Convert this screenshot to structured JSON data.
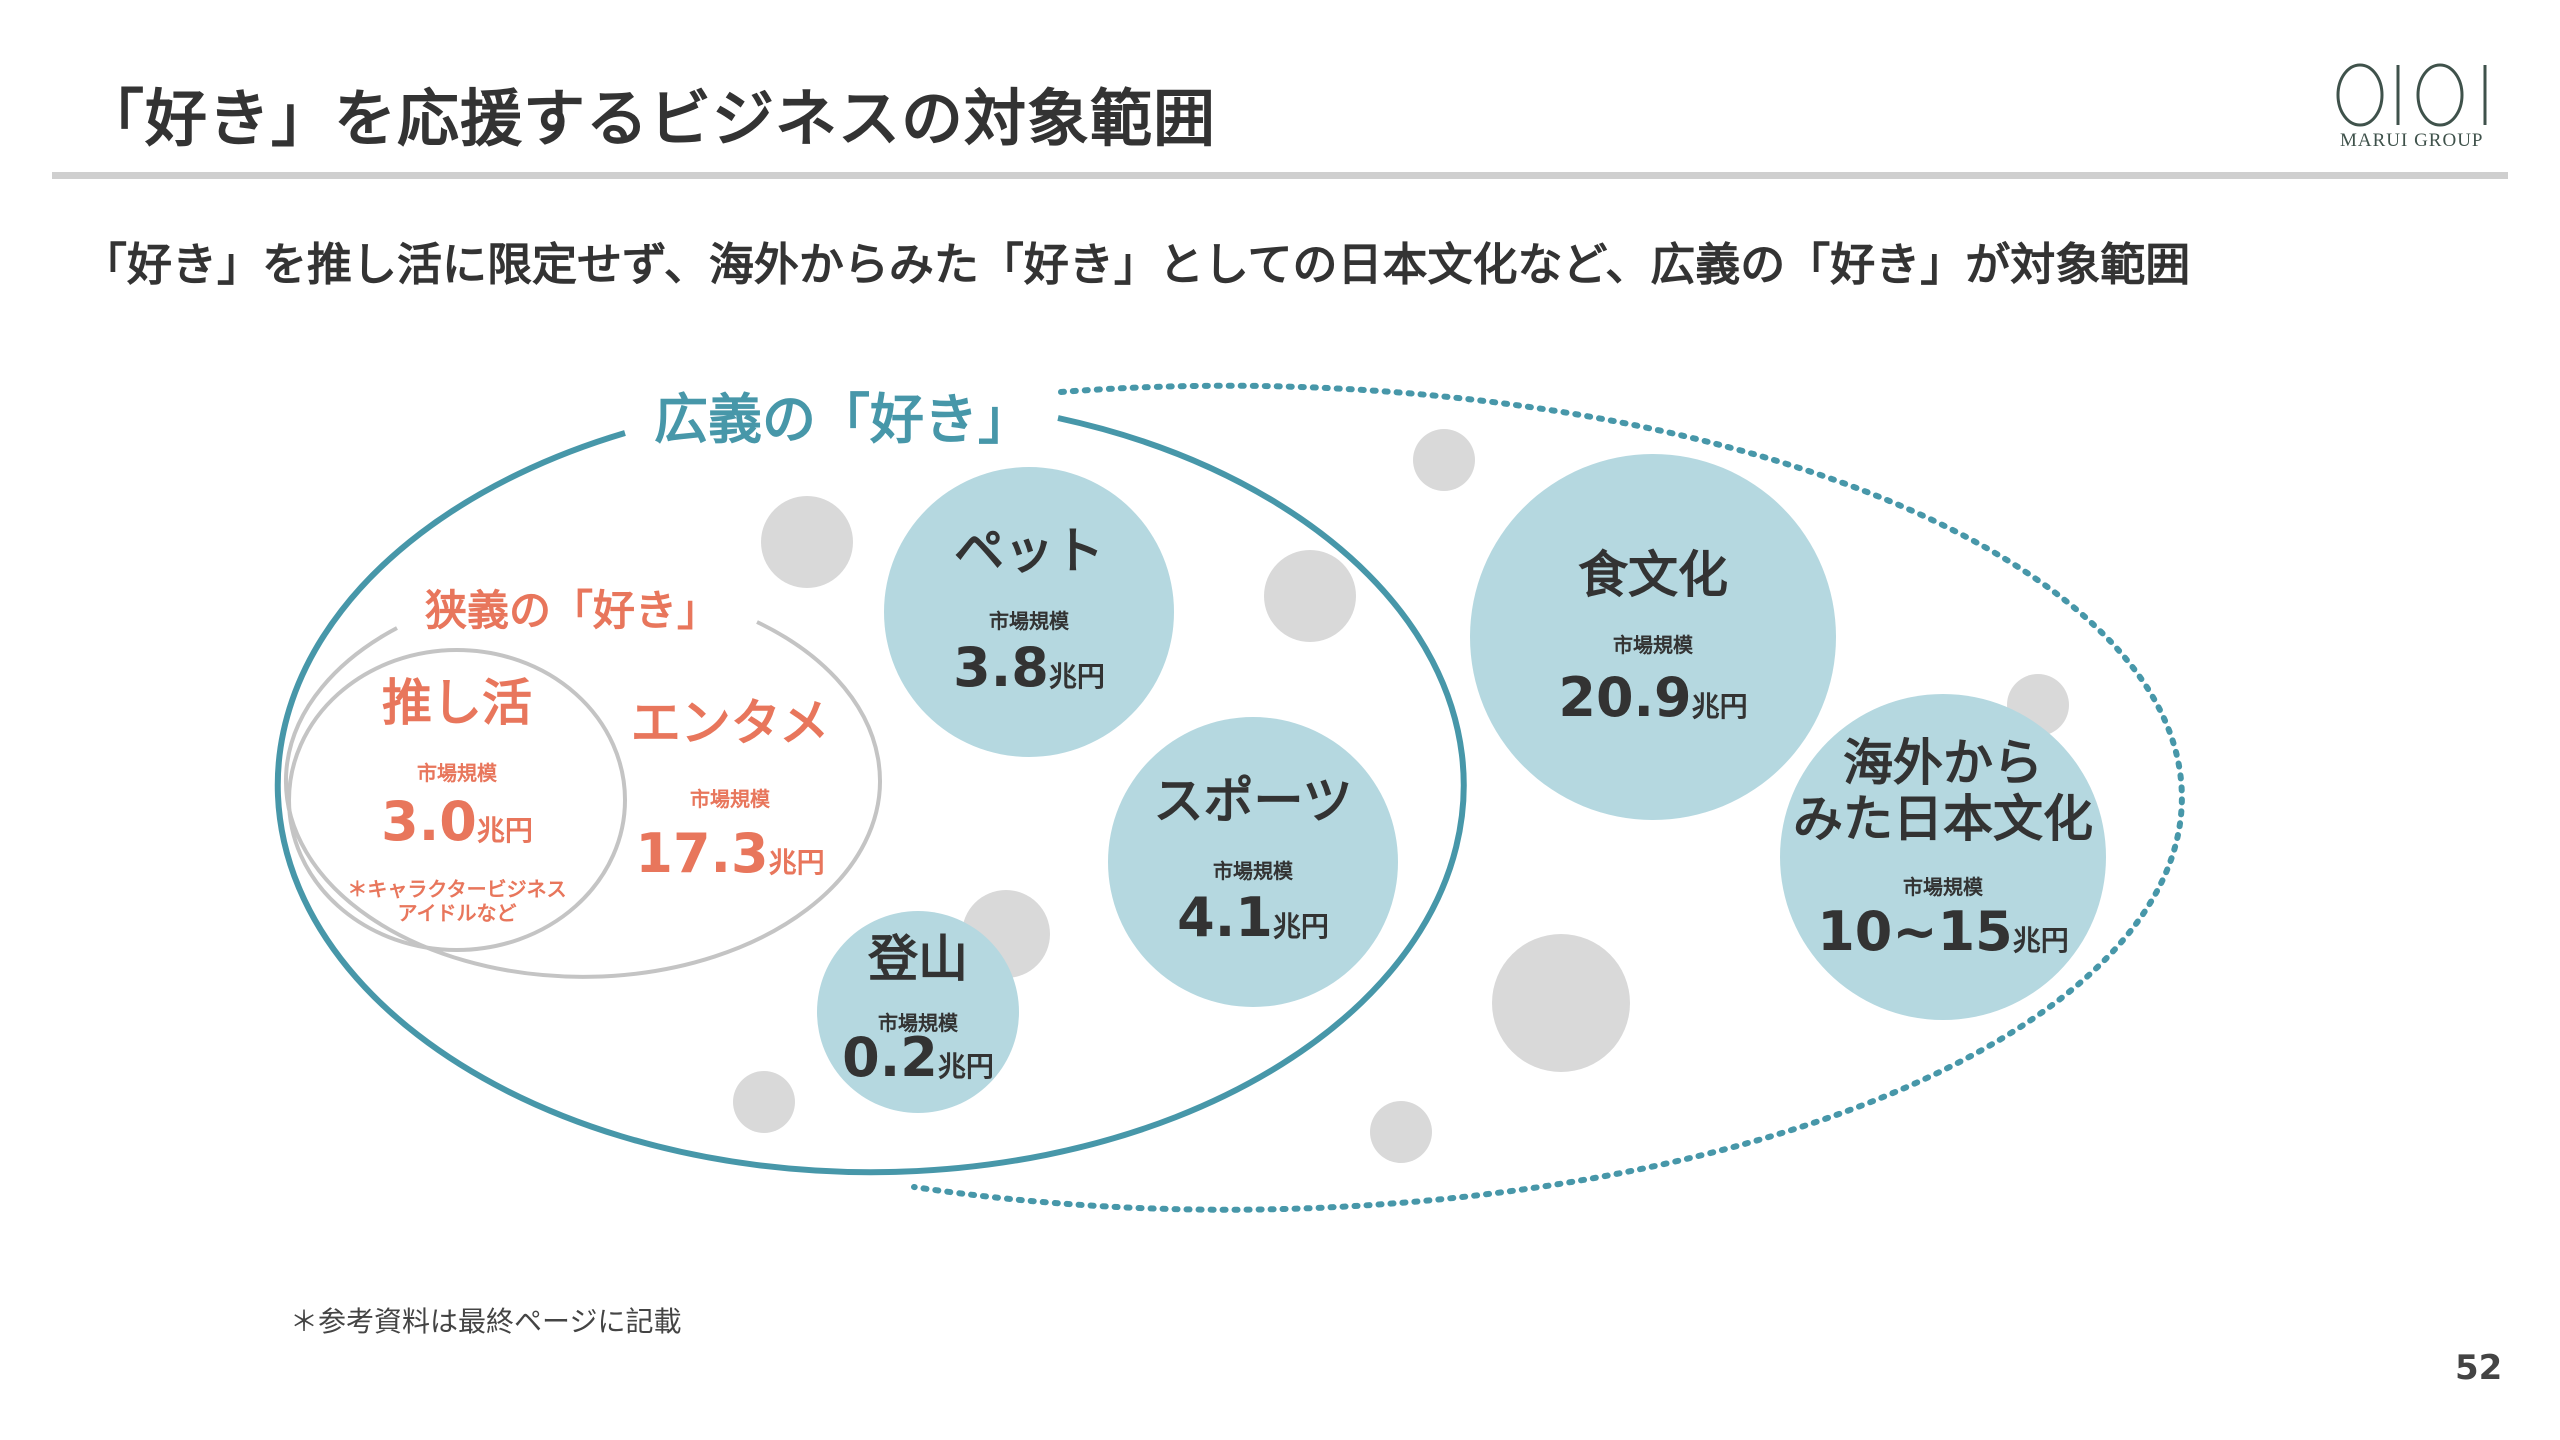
{
  "header": {
    "title": "「好き」を応援するビジネスの対象範囲",
    "logo_text": "MARUI GROUP",
    "logo_mark": "OIOI"
  },
  "subtitle": "「好き」を推し活に限定せず、海外からみた「好き」としての日本文化など、広義の「好き」が対象範囲",
  "diagram": {
    "broad_label": "広義の「好き」",
    "narrow_label": "狭義の「好き」",
    "market_label": "市場規模",
    "unit": "兆円",
    "colors": {
      "broad": "#4797a9",
      "narrow": "#e8765c",
      "bubble": "#b5d8e0",
      "filler": "#d9d9d9"
    },
    "oshikatsu": {
      "name": "推し活",
      "value": "3.0",
      "note1": "＊キャラクタービジネス",
      "note2": "アイドルなど"
    },
    "entame": {
      "name": "エンタメ",
      "value": "17.3"
    },
    "pet": {
      "name": "ペット",
      "value": "3.8"
    },
    "sports": {
      "name": "スポーツ",
      "value": "4.1"
    },
    "tozan": {
      "name": "登山",
      "value": "0.2"
    },
    "food": {
      "name": "食文化",
      "value": "20.9"
    },
    "overseas": {
      "name1": "海外から",
      "name2": "みた日本文化",
      "value": "10~15"
    }
  },
  "footnote": "＊参考資料は最終ページに記載",
  "page_number": "52"
}
